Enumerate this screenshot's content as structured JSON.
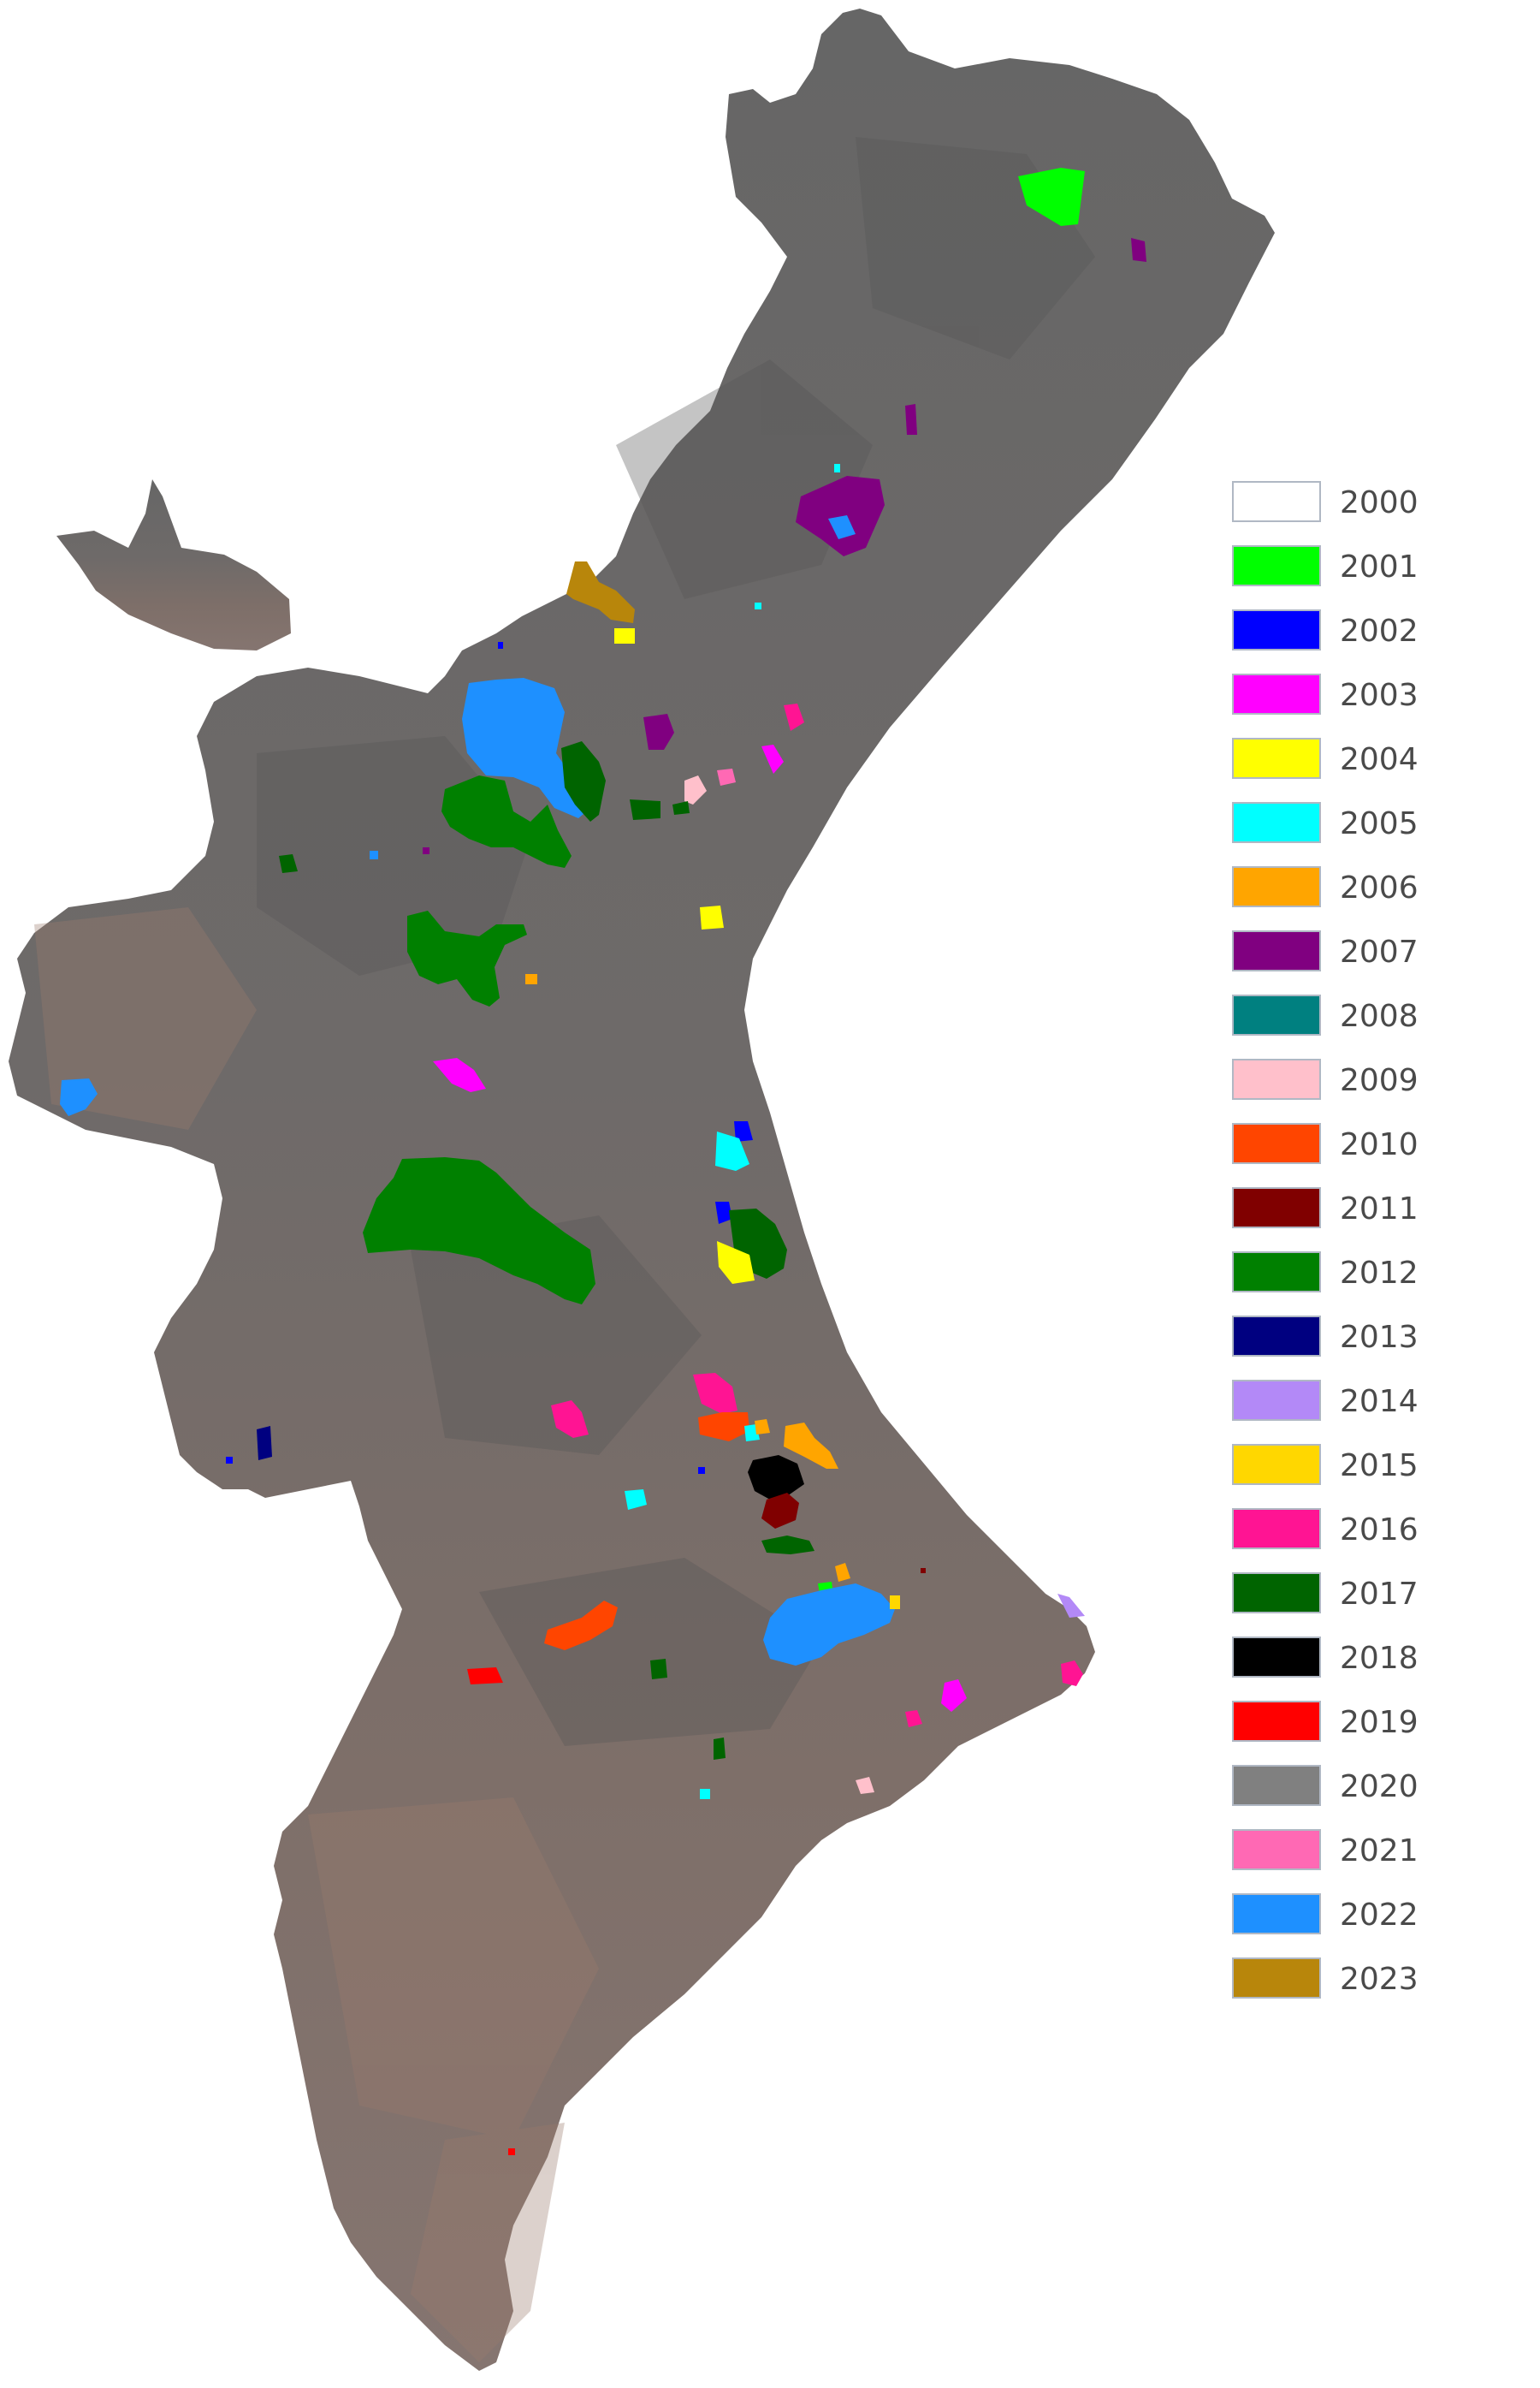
{
  "map": {
    "region_colors": {
      "land": "#6b6b6b",
      "dry_terrain": "#8a7468",
      "coast": "#7d7573",
      "background": "#ffffff"
    }
  },
  "legend": {
    "items": [
      {
        "label": "2000",
        "color": "#ffffff"
      },
      {
        "label": "2001",
        "color": "#00ff00"
      },
      {
        "label": "2002",
        "color": "#0000ff"
      },
      {
        "label": "2003",
        "color": "#ff00ff"
      },
      {
        "label": "2004",
        "color": "#ffff00"
      },
      {
        "label": "2005",
        "color": "#00ffff"
      },
      {
        "label": "2006",
        "color": "#ffa500"
      },
      {
        "label": "2007",
        "color": "#800080"
      },
      {
        "label": "2008",
        "color": "#008080"
      },
      {
        "label": "2009",
        "color": "#ffc0cb"
      },
      {
        "label": "2010",
        "color": "#ff4500"
      },
      {
        "label": "2011",
        "color": "#800000"
      },
      {
        "label": "2012",
        "color": "#008000"
      },
      {
        "label": "2013",
        "color": "#000080"
      },
      {
        "label": "2014",
        "color": "#b389f7"
      },
      {
        "label": "2015",
        "color": "#ffd700"
      },
      {
        "label": "2016",
        "color": "#ff1493"
      },
      {
        "label": "2017",
        "color": "#006400"
      },
      {
        "label": "2018",
        "color": "#000000"
      },
      {
        "label": "2019",
        "color": "#ff0000"
      },
      {
        "label": "2020",
        "color": "#808080"
      },
      {
        "label": "2021",
        "color": "#ff69b4"
      },
      {
        "label": "2022",
        "color": "#1e90ff"
      },
      {
        "label": "2023",
        "color": "#b8860b"
      }
    ]
  }
}
